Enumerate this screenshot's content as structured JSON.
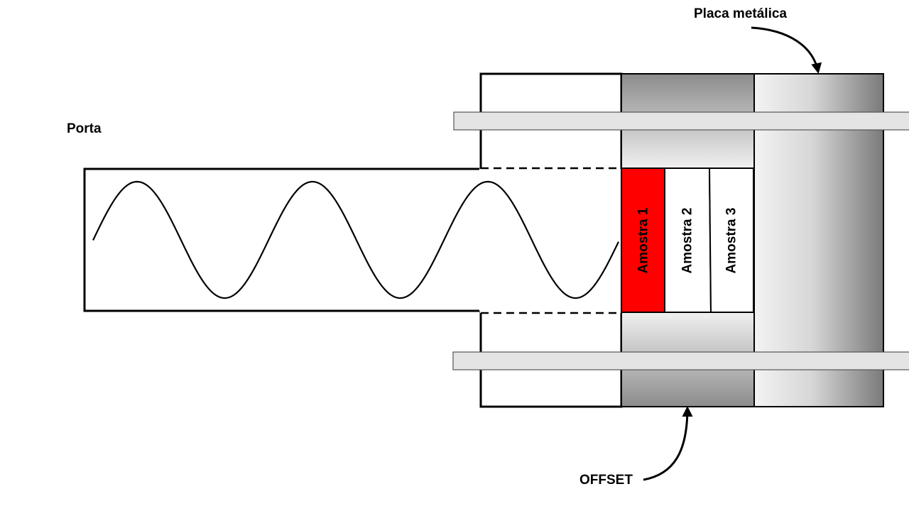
{
  "labels": {
    "porta": "Porta",
    "placa_metalica": "Placa metálica",
    "offset": "OFFSET"
  },
  "samples": [
    {
      "label": "Amostra 1",
      "highlighted": true
    },
    {
      "label": "Amostra 2",
      "highlighted": false
    },
    {
      "label": "Amostra 3",
      "highlighted": false
    }
  ],
  "colors": {
    "highlight": "#ff0000",
    "outline": "#000000",
    "bar_fill": "#e4e4e4",
    "background": "#ffffff"
  }
}
